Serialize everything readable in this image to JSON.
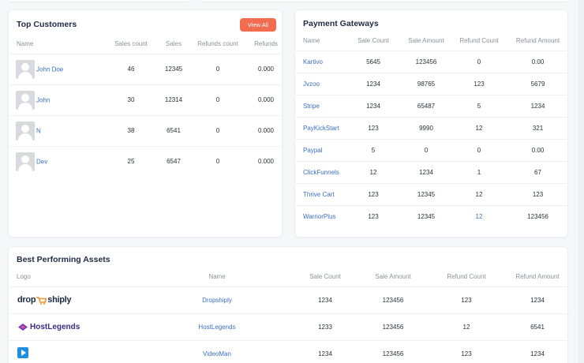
{
  "colors": {
    "accent": "#f26d50",
    "link": "#3a6fc4",
    "heading": "#1f2a44"
  },
  "top_customers": {
    "title": "Top Customers",
    "view_all_label": "View All",
    "columns": [
      "Name",
      "Sales count",
      "Sales",
      "Refunds count",
      "Refunds"
    ],
    "rows": [
      {
        "name": "John Doe",
        "sales_count": "46",
        "sales": "12345",
        "refunds_count": "0",
        "refunds": "0.000"
      },
      {
        "name": "John",
        "sales_count": "30",
        "sales": "12314",
        "refunds_count": "0",
        "refunds": "0.000"
      },
      {
        "name": "N",
        "sales_count": "38",
        "sales": "6541",
        "refunds_count": "0",
        "refunds": "0.000"
      },
      {
        "name": "Dev",
        "sales_count": "25",
        "sales": "6547",
        "refunds_count": "0",
        "refunds": "0.000"
      }
    ]
  },
  "payment_gateways": {
    "title": "Payment Gateways",
    "columns": [
      "Name",
      "Sale Count",
      "Sale Amount",
      "Refund Count",
      "Refund Amount"
    ],
    "rows": [
      {
        "name": "Kartivo",
        "sale_count": "5645",
        "sale_amount": "123456",
        "refund_count": "0",
        "refund_amount": "0.00"
      },
      {
        "name": "Jvzoo",
        "sale_count": "1234",
        "sale_amount": "98765",
        "refund_count": "123",
        "refund_amount": "5679"
      },
      {
        "name": "Stripe",
        "sale_count": "1234",
        "sale_amount": "65487",
        "refund_count": "5",
        "refund_amount": "1234"
      },
      {
        "name": "PayKickStart",
        "sale_count": "123",
        "sale_amount": "9990",
        "refund_count": "12",
        "refund_amount": "321"
      },
      {
        "name": "Paypal",
        "sale_count": "5",
        "sale_amount": "0",
        "refund_count": "0",
        "refund_amount": "0.00"
      },
      {
        "name": "ClickFunnels",
        "sale_count": "12",
        "sale_amount": "1234",
        "refund_count": "1",
        "refund_amount": "67"
      },
      {
        "name": "Thrive Cart",
        "sale_count": "123",
        "sale_amount": "12345",
        "refund_count": "12",
        "refund_amount": "123"
      },
      {
        "name": "WarriorPlus",
        "sale_count": "123",
        "sale_amount": "12345",
        "refund_count": "12",
        "refund_amount": "123456"
      }
    ]
  },
  "best_assets": {
    "title": "Best Performing Assets",
    "columns": [
      "Logo",
      "Name",
      "Sale Count",
      "Sale Amount",
      "Refund Count",
      "Refund Amount"
    ],
    "rows": [
      {
        "logo": "dropshiply-logo",
        "logo_text_a": "drop",
        "logo_text_b": "shiply",
        "name": "Dropshiply",
        "sale_count": "1234",
        "sale_amount": "123456",
        "refund_count": "123",
        "refund_amount": "1234"
      },
      {
        "logo": "hostlegends-logo",
        "logo_text": "HostLegends",
        "name": "HostLegends",
        "sale_count": "1233",
        "sale_amount": "123456",
        "refund_count": "12",
        "refund_amount": "6541"
      },
      {
        "logo": "videoman-logo",
        "name": "VideoMan",
        "sale_count": "1234",
        "sale_amount": "123456",
        "refund_count": "123",
        "refund_amount": "1234"
      }
    ]
  }
}
